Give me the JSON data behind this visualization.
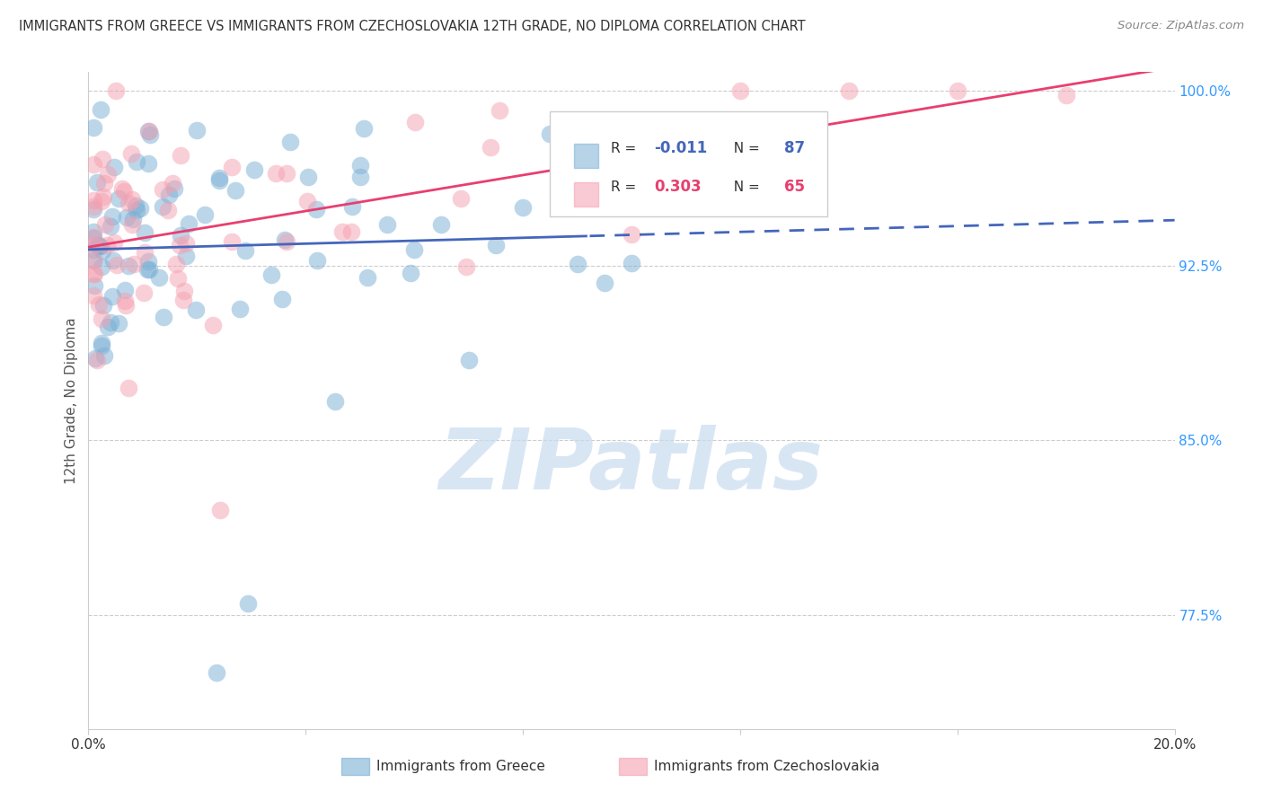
{
  "title": "IMMIGRANTS FROM GREECE VS IMMIGRANTS FROM CZECHOSLOVAKIA 12TH GRADE, NO DIPLOMA CORRELATION CHART",
  "source": "Source: ZipAtlas.com",
  "ylabel": "12th Grade, No Diploma",
  "legend_label_blue": "Immigrants from Greece",
  "legend_label_pink": "Immigrants from Czechoslovakia",
  "blue_color": "#7BAFD4",
  "pink_color": "#F5A0B0",
  "trend_blue_color": "#4466BB",
  "trend_pink_color": "#E83F6F",
  "ytick_color": "#3399FF",
  "xlim": [
    0.0,
    0.2
  ],
  "ylim": [
    0.726,
    1.008
  ],
  "y_ticks": [
    0.775,
    0.85,
    0.925,
    1.0
  ],
  "y_tick_labels": [
    "77.5%",
    "85.0%",
    "92.5%",
    "100.0%"
  ],
  "legend_R_blue": "-0.011",
  "legend_N_blue": "87",
  "legend_R_pink": "0.303",
  "legend_N_pink": "65",
  "blue_seed": 42,
  "pink_seed": 99,
  "watermark_text": "ZIPatlas",
  "watermark_color": "#C8DCF0",
  "blue_trend_solid_end": 0.092,
  "blue_trend_x_start": 0.0,
  "blue_trend_x_end": 0.2,
  "pink_trend_x_start": 0.0,
  "pink_trend_x_end": 0.2
}
